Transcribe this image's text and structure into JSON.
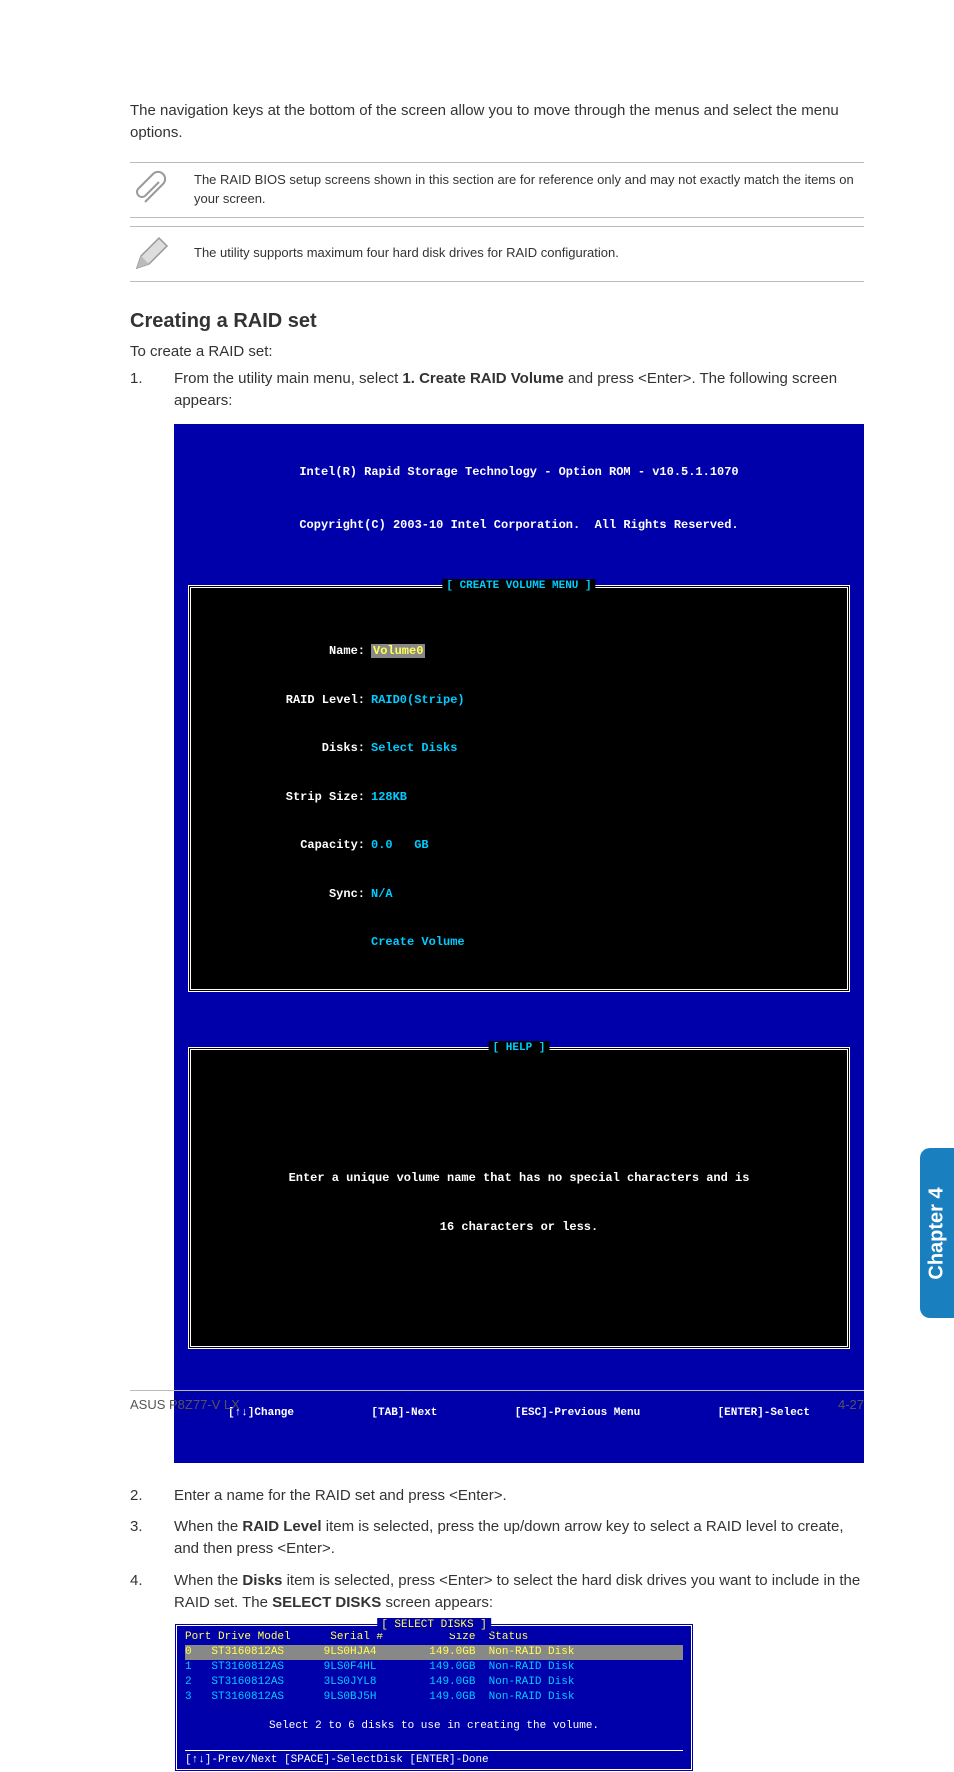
{
  "intro": "The navigation keys at the bottom of the screen allow you to move through the menus and select the menu options.",
  "note1": "The RAID BIOS setup screens shown in this section are for reference only and may not exactly match the items on your screen.",
  "note2": "The utility supports maximum four hard disk drives for RAID configuration.",
  "heading": "Creating a RAID set",
  "preface": "To create a RAID set:",
  "step1_pre": "From the utility main menu, select ",
  "step1_bold": "1. Create RAID Volume",
  "step1_post": " and press <Enter>. The following screen appears:",
  "bios": {
    "title1": "Intel(R) Rapid Storage Technology - Option ROM - v10.5.1.1070",
    "title2": "Copyright(C) 2003-10 Intel Corporation.  All Rights Reserved.",
    "panel1_title": "[ CREATE VOLUME MENU ]",
    "fields": {
      "name_label": "Name:",
      "name_val": "Volume0",
      "raid_label": "RAID Level:",
      "raid_val": "RAID0(Stripe)",
      "disks_label": "Disks:",
      "disks_val": "Select Disks",
      "strip_label": "Strip Size:",
      "strip_val": "128KB",
      "cap_label": "Capacity:",
      "cap_val": "0.0   GB",
      "sync_label": "Sync:",
      "sync_val": "N/A",
      "create": "Create Volume"
    },
    "help_title": "[ HELP ]",
    "help_line1": "Enter a unique volume name that has no special characters and is",
    "help_line2": "16 characters or less.",
    "footer": {
      "change": "[↑↓]Change",
      "tab": "[TAB]-Next",
      "esc": "[ESC]-Previous Menu",
      "enter": "[ENTER]-Select"
    }
  },
  "step2": "Enter a name for the RAID set and press <Enter>.",
  "step3_pre": "When the ",
  "step3_bold": "RAID Level",
  "step3_post": " item is selected, press the up/down arrow key to select a RAID level to create, and then press <Enter>.",
  "step4_pre": "When the ",
  "step4_bold1": "Disks",
  "step4_mid": " item is selected, press <Enter> to select the hard disk drives you want to include in the RAID set. The ",
  "step4_bold2": "SELECT DISKS",
  "step4_post": " screen appears:",
  "disks": {
    "title": "[ SELECT DISKS ]",
    "header": "Port Drive Model      Serial #          Size  Status",
    "rows": [
      {
        "port": "0",
        "model": "ST3160812AS",
        "serial": "9LS0HJA4",
        "size": "149.0GB",
        "status": "Non-RAID Disk",
        "selected": true
      },
      {
        "port": "1",
        "model": "ST3160812AS",
        "serial": "9LS0F4HL",
        "size": "149.0GB",
        "status": "Non-RAID Disk",
        "selected": false
      },
      {
        "port": "2",
        "model": "ST3160812AS",
        "serial": "3LS0JYL8",
        "size": "149.0GB",
        "status": "Non-RAID Disk",
        "selected": false
      },
      {
        "port": "3",
        "model": "ST3160812AS",
        "serial": "9LS0BJ5H",
        "size": "149.0GB",
        "status": "Non-RAID Disk",
        "selected": false
      }
    ],
    "note": "Select 2 to 6 disks to use in creating the volume.",
    "footer": "[↑↓]-Prev/Next [SPACE]-SelectDisk [ENTER]-Done"
  },
  "side_tab": "Chapter 4",
  "footer_left": "ASUS P8Z77-V LX",
  "footer_right": "4-27",
  "colors": {
    "bios_bg": "#0000aa",
    "panel_bg": "#000000",
    "cyan": "#00ccff",
    "yellow": "#ffff55",
    "tab_bg": "#1a7fbf"
  }
}
